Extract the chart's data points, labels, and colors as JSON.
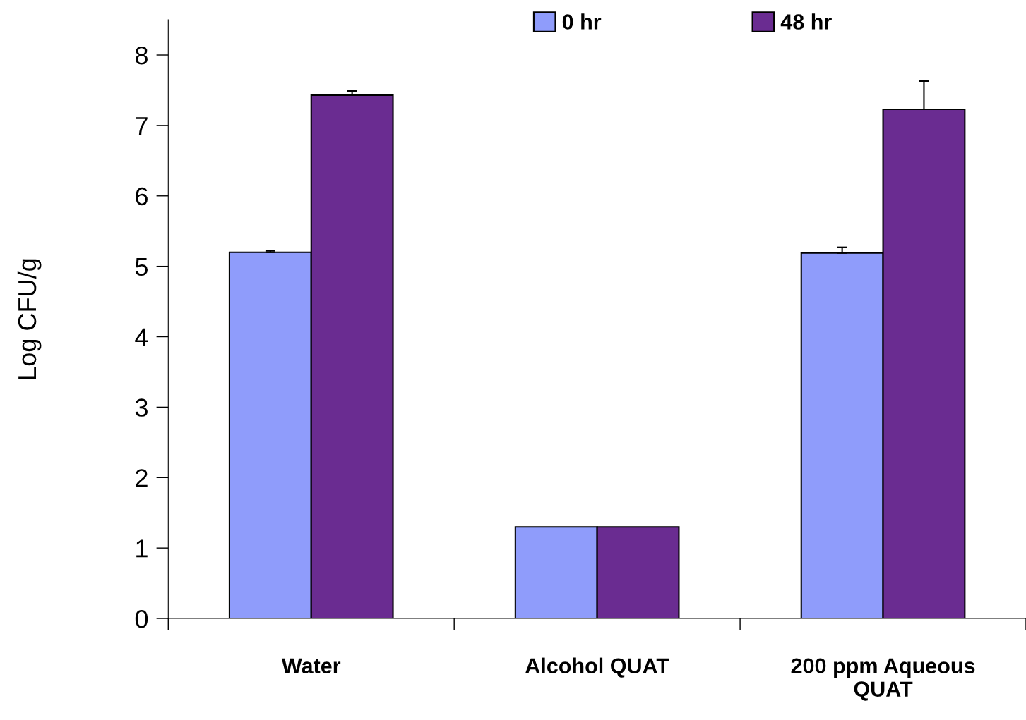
{
  "chart_data": {
    "type": "bar",
    "ylabel": "Log CFU/g",
    "categories": [
      "Water",
      "Alcohol QUAT",
      "200 ppm Aqueous\nQUAT"
    ],
    "series": [
      {
        "name": "0 hr",
        "color": "#8f9cfb",
        "values": [
          5.2,
          1.3,
          5.19
        ],
        "errors": [
          [
            5.2,
            5.22
          ],
          null,
          [
            5.19,
            5.27
          ]
        ]
      },
      {
        "name": "48 hr",
        "color": "#6a2c91",
        "values": [
          7.43,
          1.3,
          7.23
        ],
        "errors": [
          [
            7.43,
            7.49
          ],
          null,
          [
            7.23,
            7.63
          ]
        ]
      }
    ],
    "ylim": [
      0,
      8.5
    ],
    "yticks": [
      0,
      1,
      2,
      3,
      4,
      5,
      6,
      7,
      8
    ],
    "grid": false,
    "legend": "top"
  }
}
